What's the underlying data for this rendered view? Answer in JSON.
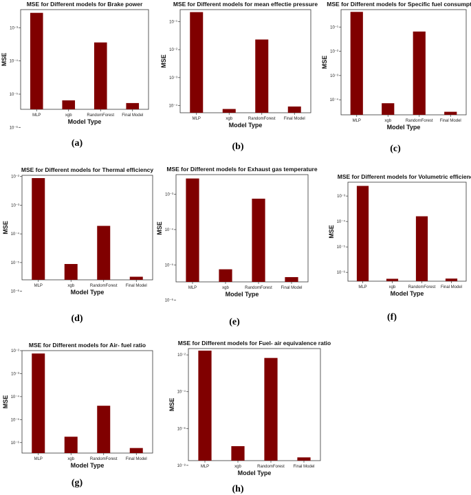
{
  "chart_data": [
    {
      "type": "bar",
      "panel": "a",
      "title": "MSE for Different models for Brake power",
      "xlabel": "Model Type",
      "ylabel": "MSE",
      "yscale": "log",
      "categories": [
        "MLP",
        "xgb",
        "RandomForest",
        "Final Model"
      ],
      "values": [
        0.0028,
        6.5e-06,
        0.00036,
        5.4e-06
      ],
      "ylim": [
        3.5e-06,
        0.0035
      ],
      "yticks": [
        {
          "value": 0.001,
          "label": "10⁻³"
        },
        {
          "value": 0.0001,
          "label": "10⁻⁴"
        },
        {
          "value": 1e-05,
          "label": "10⁻⁵"
        },
        {
          "value": 1e-06,
          "label": "10⁻⁶"
        }
      ],
      "bar_color": "#800000"
    },
    {
      "type": "bar",
      "panel": "b",
      "title": "MSE for Different models for mean effectie pressure",
      "xlabel": "Model Type",
      "ylabel": "MSE",
      "yscale": "log",
      "categories": [
        "MLP",
        "xgb",
        "RandomForest",
        "Final Model"
      ],
      "values": [
        0.22,
        7.5e-05,
        0.023,
        9.2e-05
      ],
      "ylim": [
        5.5e-05,
        0.27
      ],
      "yticks": [
        {
          "value": 0.1,
          "label": "10⁻¹"
        },
        {
          "value": 0.01,
          "label": "10⁻²"
        },
        {
          "value": 0.001,
          "label": "10⁻³"
        },
        {
          "value": 0.0001,
          "label": "10⁻⁴"
        }
      ],
      "bar_color": "#800000"
    },
    {
      "type": "bar",
      "panel": "c",
      "title": "MSE for Different models for Specific fuel consumption",
      "xlabel": "Model Type",
      "ylabel": "MSE",
      "yscale": "log",
      "categories": [
        "MLP",
        "xgb",
        "RandomForest",
        "Final Model"
      ],
      "values": [
        0.42,
        7.2e-05,
        0.065,
        3.2e-05
      ],
      "ylim": [
        2.4e-05,
        0.52
      ],
      "yticks": [
        {
          "value": 0.1,
          "label": "10⁻¹"
        },
        {
          "value": 0.01,
          "label": "10⁻²"
        },
        {
          "value": 0.001,
          "label": "10⁻³"
        },
        {
          "value": 0.0001,
          "label": "10⁻⁴"
        }
      ],
      "bar_color": "#800000"
    },
    {
      "type": "bar",
      "panel": "d",
      "title": "MSE for Different models for Thermal efficiency",
      "xlabel": "Model Type",
      "ylabel": "MSE",
      "yscale": "log",
      "categories": [
        "MLP",
        "xgb",
        "RandomForest",
        "Final Model"
      ],
      "values": [
        0.0088,
        8.9e-06,
        0.00019,
        3.2e-06
      ],
      "ylim": [
        2.5e-06,
        0.011
      ],
      "yticks": [
        {
          "value": 0.01,
          "label": "10⁻²"
        },
        {
          "value": 0.001,
          "label": "10⁻³"
        },
        {
          "value": 0.0001,
          "label": "10⁻⁴"
        },
        {
          "value": 1e-05,
          "label": "10⁻⁵"
        },
        {
          "value": 1e-06,
          "label": "10⁻⁶"
        }
      ],
      "bar_color": "#800000"
    },
    {
      "type": "bar",
      "panel": "e",
      "title": "MSE for Different models for Exhaust gas temperature",
      "xlabel": "Model Type",
      "ylabel": "MSE",
      "yscale": "log",
      "categories": [
        "MLP",
        "xgb",
        "RandomForest",
        "Final Model"
      ],
      "values": [
        0.0028,
        7.5e-06,
        0.00075,
        4.5e-06
      ],
      "ylim": [
        3.3e-06,
        0.0036
      ],
      "yticks": [
        {
          "value": 0.001,
          "label": "10⁻³"
        },
        {
          "value": 0.0001,
          "label": "10⁻⁴"
        },
        {
          "value": 1e-05,
          "label": "10⁻⁵"
        },
        {
          "value": 1e-06,
          "label": "10⁻⁶"
        }
      ],
      "bar_color": "#800000"
    },
    {
      "type": "bar",
      "panel": "f",
      "title": "MSE for Different models for Volumetric efficiency",
      "xlabel": "Model Type",
      "ylabel": "MSE",
      "yscale": "log",
      "categories": [
        "MLP",
        "xgb",
        "RandomForest",
        "Final Model"
      ],
      "values": [
        0.0025,
        5.6e-07,
        0.00016,
        5.7e-07
      ],
      "ylim": [
        4.5e-07,
        0.0035
      ],
      "yticks": [
        {
          "value": 0.001,
          "label": "10⁻³"
        },
        {
          "value": 0.0001,
          "label": "10⁻⁴"
        },
        {
          "value": 1e-05,
          "label": "10⁻⁵"
        },
        {
          "value": 1e-06,
          "label": "10⁻⁶"
        }
      ],
      "bar_color": "#800000"
    },
    {
      "type": "bar",
      "panel": "g",
      "title": "MSE for Different models for Air- fuel ratio",
      "xlabel": "Model Type",
      "ylabel": "MSE",
      "yscale": "log",
      "categories": [
        "MLP",
        "xgb",
        "RandomForest",
        "Final Model"
      ],
      "values": [
        0.0075,
        1.8e-06,
        4e-05,
        5.8e-07
      ],
      "ylim": [
        3.5e-07,
        0.01
      ],
      "yticks": [
        {
          "value": 0.01,
          "label": "10⁻²"
        },
        {
          "value": 0.001,
          "label": "10⁻³"
        },
        {
          "value": 0.0001,
          "label": "10⁻⁴"
        },
        {
          "value": 1e-05,
          "label": "10⁻⁵"
        },
        {
          "value": 1e-06,
          "label": "10⁻⁶"
        }
      ],
      "bar_color": "#800000"
    },
    {
      "type": "bar",
      "panel": "h",
      "title": "MSE for Different models for Fuel- air equivalence ratio",
      "xlabel": "Model Type",
      "ylabel": "MSE",
      "yscale": "log",
      "categories": [
        "MLP",
        "xgb",
        "RandomForest",
        "Final Model"
      ],
      "values": [
        0.017,
        1.1e-07,
        0.0068,
        2.7e-08
      ],
      "ylim": [
        1.8e-08,
        0.022
      ],
      "yticks": [
        {
          "value": 0.01,
          "label": "10⁻²"
        },
        {
          "value": 0.0001,
          "label": "10⁻⁴"
        },
        {
          "value": 1e-06,
          "label": "10⁻⁶"
        },
        {
          "value": 1e-08,
          "label": "10⁻⁸"
        }
      ],
      "bar_color": "#800000"
    }
  ],
  "captions": [
    "(a)",
    "(b)",
    "(c)",
    "(d)",
    "(e)",
    "(f)",
    "(g)",
    "(h)"
  ]
}
